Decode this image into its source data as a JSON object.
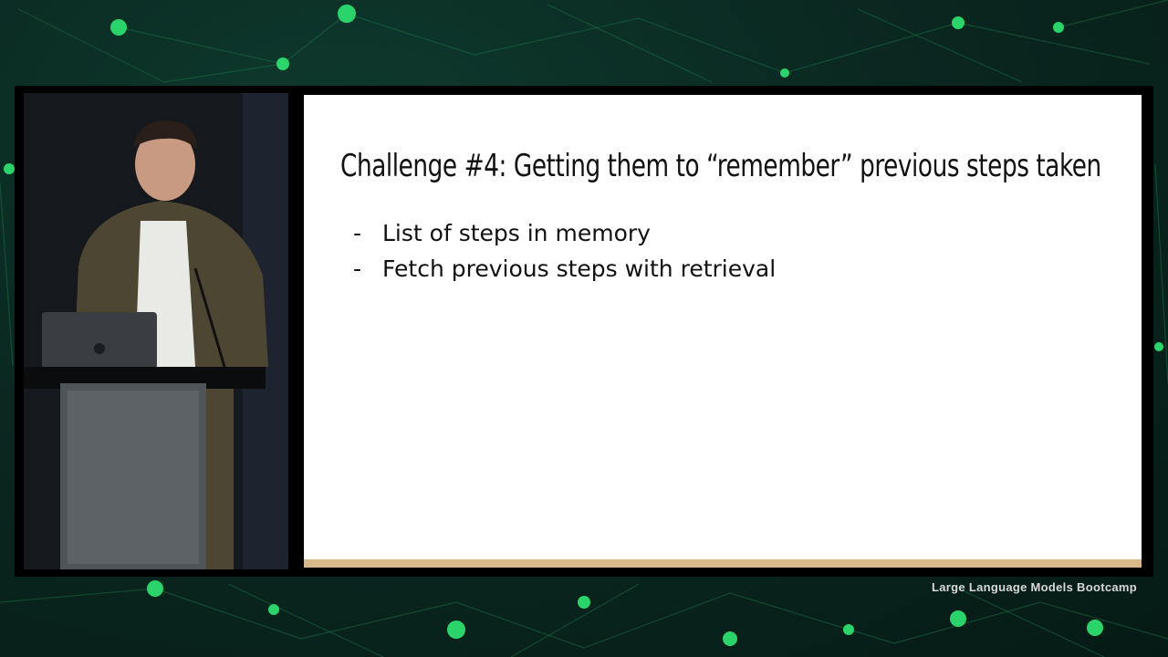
{
  "slide": {
    "title": "Challenge #4: Getting them to “remember” previous steps taken",
    "bullets": [
      {
        "marker": "-",
        "text": "List of steps in memory"
      },
      {
        "marker": "-",
        "text": "Fetch previous steps with retrieval"
      }
    ],
    "accent_color": "#d9b98a"
  },
  "branding": {
    "text": "Large Language Models Bootcamp"
  }
}
